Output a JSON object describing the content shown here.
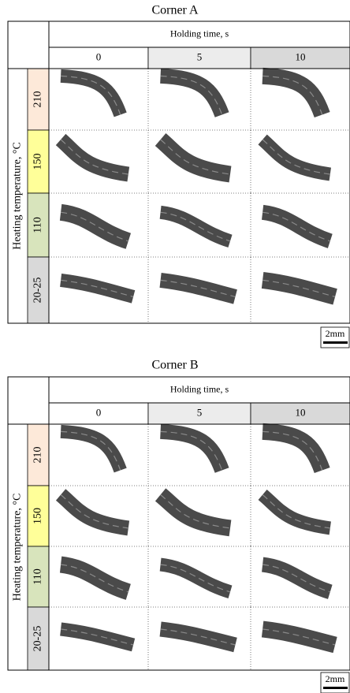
{
  "panels": [
    {
      "title": "Corner A",
      "column_header": "Holding time, s",
      "columns": [
        "0",
        "5",
        "10"
      ],
      "row_header": "Heating temperature, °C",
      "rows": [
        "210",
        "150",
        "110",
        "20-25"
      ],
      "scale": "2mm"
    },
    {
      "title": "Corner B",
      "column_header": "Holding time, s",
      "columns": [
        "0",
        "5",
        "10"
      ],
      "row_header": "Heating temperature, °C",
      "rows": [
        "210",
        "150",
        "110",
        "20-25"
      ],
      "scale": "2mm"
    }
  ]
}
